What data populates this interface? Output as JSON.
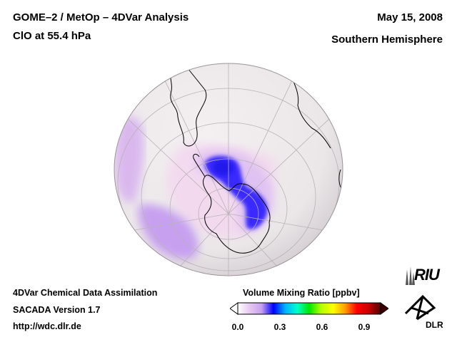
{
  "header": {
    "title_line1": "GOME–2 / MetOp – 4DVar Analysis",
    "title_line2": "ClO at 55.4 hPa",
    "date": "May 15, 2008",
    "hemisphere": "Southern Hemisphere"
  },
  "footer": {
    "line1": "4DVar Chemical Data Assimilation",
    "line2": "SACADA Version 1.7",
    "line3": "http://wdc.dlr.de"
  },
  "colorbar": {
    "title": "Volume Mixing Ratio [ppbv]",
    "ticks": [
      "0.0",
      "0.3",
      "0.6",
      "0.9"
    ],
    "range": [
      0.0,
      1.0
    ],
    "colors": [
      "#ffffff",
      "#e6c8f0",
      "#c8a0f0",
      "#0000ff",
      "#00b4ff",
      "#00ffc8",
      "#00e600",
      "#b4ff00",
      "#ffff00",
      "#ffa000",
      "#ff0000",
      "#c80000",
      "#500000"
    ]
  },
  "map": {
    "projection": "orthographic-south-polar",
    "ocean_color": "#ede8ea",
    "max_value_ppbv": 0.25
  },
  "logos": {
    "riu": "RIU",
    "dlr": "DLR"
  }
}
